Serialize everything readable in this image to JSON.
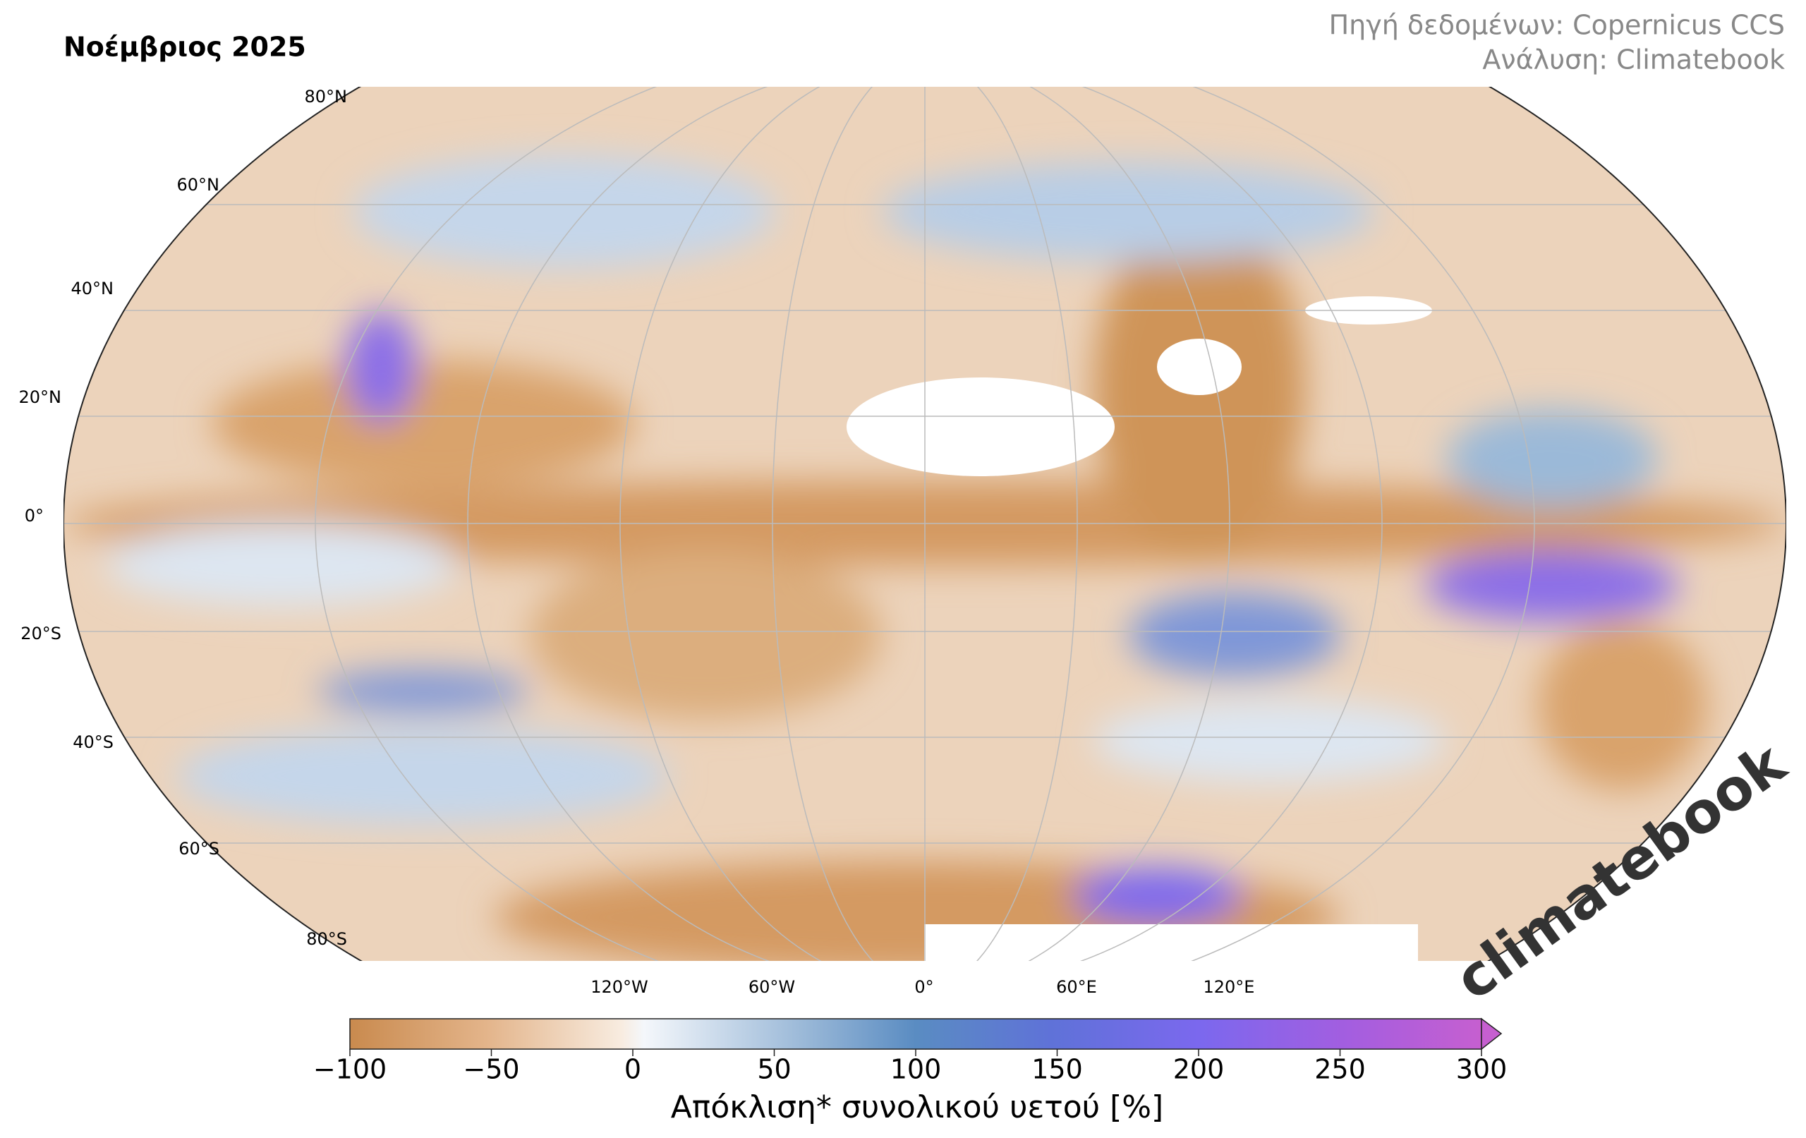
{
  "header": {
    "title": "Νοέμβριος 2025",
    "source": "Πηγή δεδομένων: Copernicus CCS",
    "analysis": "Ανάλυση: Climatebook"
  },
  "map": {
    "lat_labels": [
      "80°N",
      "60°N",
      "40°N",
      "20°N",
      "0°",
      "20°S",
      "40°S",
      "60°S",
      "80°S"
    ],
    "lon_labels": [
      "120°W",
      "60°W",
      "0°",
      "60°E",
      "120°E"
    ]
  },
  "colorbar": {
    "label": "Απόκλιση* συνολικού υετού [%]",
    "lim": [
      -100,
      300
    ],
    "ticks": [
      {
        "value": -100,
        "label": "−100"
      },
      {
        "value": -50,
        "label": "−50"
      },
      0,
      50,
      100,
      150,
      200,
      250,
      300
    ]
  },
  "logo": "climatebook"
}
